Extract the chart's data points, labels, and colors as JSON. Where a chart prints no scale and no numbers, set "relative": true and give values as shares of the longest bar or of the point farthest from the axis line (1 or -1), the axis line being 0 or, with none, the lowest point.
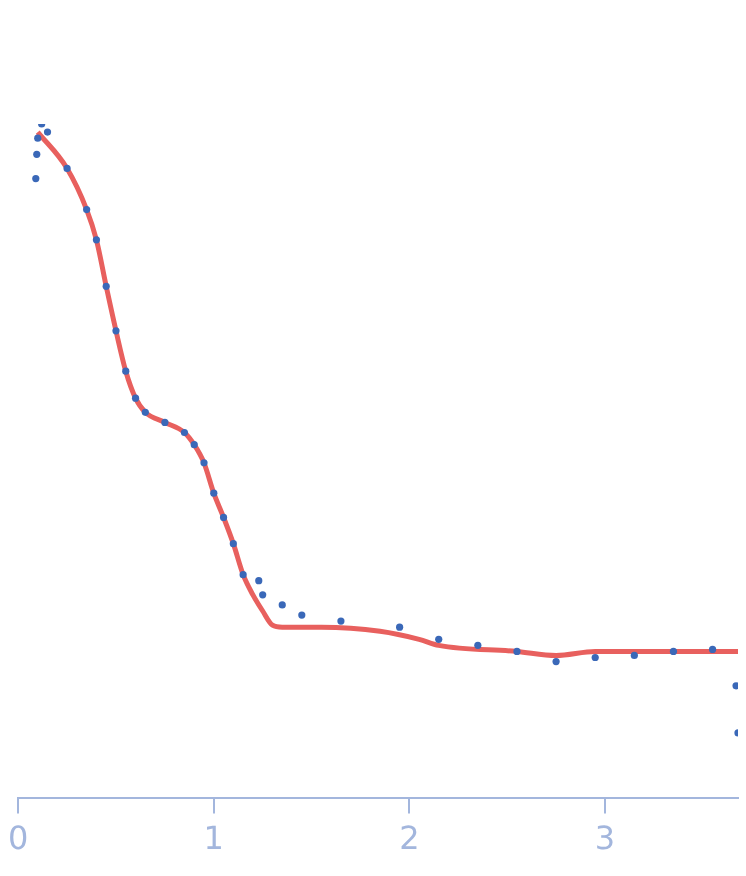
{
  "chart_data": {
    "type": "scatter",
    "relative": true,
    "xlim": [
      0,
      3.68
    ],
    "xticks": [
      0,
      1,
      2,
      3
    ],
    "grid": false,
    "legend": false,
    "series": [
      {
        "color": "#3a68b8",
        "marker": "circle",
        "x": [
          0.09,
          0.095,
          0.1,
          0.12,
          0.15,
          0.25,
          0.35,
          0.4,
          0.45,
          0.5,
          0.55,
          0.6,
          0.65,
          0.75,
          0.85,
          0.9,
          0.95,
          1.0,
          1.05,
          1.1,
          1.15,
          1.23,
          1.25,
          1.35,
          1.45,
          1.65,
          1.95,
          2.15,
          2.35,
          2.55,
          2.75,
          2.95,
          3.15,
          3.35,
          3.55,
          3.67,
          3.68
        ],
        "values": [
          0.919,
          0.955,
          0.979,
          1.0,
          0.988,
          0.934,
          0.873,
          0.828,
          0.759,
          0.693,
          0.633,
          0.593,
          0.572,
          0.557,
          0.542,
          0.524,
          0.497,
          0.452,
          0.416,
          0.377,
          0.331,
          0.322,
          0.301,
          0.286,
          0.271,
          0.262,
          0.253,
          0.235,
          0.226,
          0.217,
          0.202,
          0.208,
          0.211,
          0.217,
          0.22,
          0.166,
          0.096
        ]
      },
      {
        "type": "line",
        "color": "#e8605e",
        "line_style": "solid",
        "x": [
          0.1,
          0.25,
          0.35,
          0.4,
          0.45,
          0.5,
          0.55,
          0.6,
          0.65,
          0.75,
          0.85,
          0.9,
          0.95,
          1.0,
          1.05,
          1.1,
          1.15,
          1.2,
          1.25,
          1.3,
          1.35,
          1.55,
          1.85,
          2.05,
          2.15,
          2.55,
          2.75,
          2.95,
          3.35,
          3.68
        ],
        "values": [
          0.988,
          0.934,
          0.873,
          0.828,
          0.759,
          0.693,
          0.633,
          0.593,
          0.572,
          0.557,
          0.542,
          0.524,
          0.497,
          0.452,
          0.416,
          0.377,
          0.331,
          0.301,
          0.277,
          0.256,
          0.253,
          0.253,
          0.247,
          0.235,
          0.226,
          0.217,
          0.211,
          0.217,
          0.217,
          0.217
        ]
      }
    ]
  }
}
